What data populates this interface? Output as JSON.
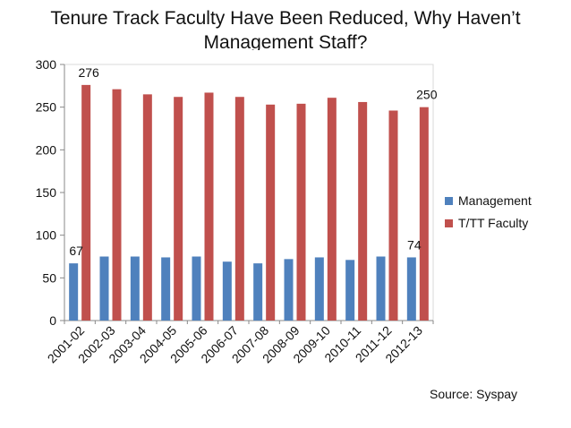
{
  "chart_data": {
    "type": "bar",
    "title": "Tenure Track Faculty Have Been Reduced, Why Haven’t Management Staff?",
    "title_lines": [
      "Tenure Track Faculty Have Been Reduced, Why Haven’t",
      "Management Staff?"
    ],
    "categories": [
      "2001-02",
      "2002-03",
      "2003-04",
      "2004-05",
      "2005-06",
      "2006-07",
      "2007-08",
      "2008-09",
      "2009-10",
      "2010-11",
      "2011-12",
      "2012-13"
    ],
    "series": [
      {
        "name": "Management",
        "color": "#4F81BD",
        "values": [
          67,
          75,
          75,
          74,
          75,
          69,
          67,
          72,
          74,
          71,
          75,
          74
        ]
      },
      {
        "name": "T/TT Faculty",
        "color": "#C0504D",
        "values": [
          276,
          271,
          265,
          262,
          267,
          262,
          253,
          254,
          261,
          256,
          246,
          250
        ]
      }
    ],
    "data_labels": [
      {
        "series": 0,
        "index": 0,
        "text": "67"
      },
      {
        "series": 1,
        "index": 0,
        "text": "276"
      },
      {
        "series": 0,
        "index": 11,
        "text": "74"
      },
      {
        "series": 1,
        "index": 11,
        "text": "250"
      }
    ],
    "ylim": [
      0,
      300
    ],
    "yticks": [
      "0",
      "50",
      "100",
      "150",
      "200",
      "250",
      "300"
    ],
    "grid": false,
    "legend_position": "right",
    "xlabel": "",
    "ylabel": ""
  },
  "source_note": "Source: Syspay"
}
